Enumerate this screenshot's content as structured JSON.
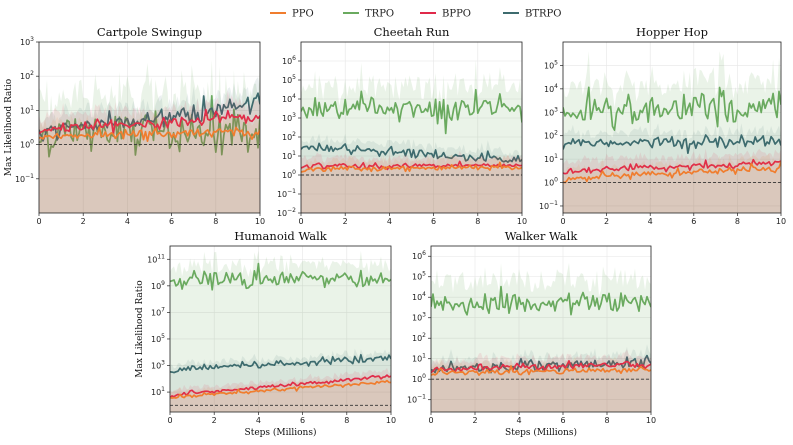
{
  "legend": [
    {
      "name": "PPO",
      "color": "#f07d2e"
    },
    {
      "name": "TRPO",
      "color": "#6aaa5f"
    },
    {
      "name": "BPPO",
      "color": "#e0294a"
    },
    {
      "name": "BTRPO",
      "color": "#3d6b6e"
    }
  ],
  "chart_data": [
    {
      "type": "line",
      "title": "Cartpole Swingup",
      "xlabel": "",
      "ylabel": "Max Likelihood Ratio",
      "xlim": [
        0,
        10
      ],
      "ylim_log10": [
        -2,
        3
      ],
      "yscale": "log",
      "xticks": [
        "0",
        "2",
        "4",
        "6",
        "8",
        "10"
      ],
      "yticks_exp": [
        "-1",
        "0",
        "1",
        "2",
        "3"
      ],
      "reference_line": 1,
      "series": [
        {
          "name": "PPO",
          "level": 1.8,
          "end": 2.2
        },
        {
          "name": "TRPO",
          "level": 2.0,
          "end": 2.5
        },
        {
          "name": "BPPO",
          "level": 2.8,
          "end": 6.0
        },
        {
          "name": "BTRPO",
          "level": 2.2,
          "end": 15.0
        }
      ]
    },
    {
      "type": "line",
      "title": "Cheetah Run",
      "xlabel": "",
      "ylabel": "",
      "xlim": [
        0,
        10
      ],
      "ylim_log10": [
        -2,
        7
      ],
      "yscale": "log",
      "xticks": [
        "0",
        "2",
        "4",
        "6",
        "8",
        "10"
      ],
      "yticks_exp": [
        "-2",
        "-1",
        "0",
        "1",
        "2",
        "3",
        "4",
        "5",
        "6"
      ],
      "reference_line": 1,
      "series": [
        {
          "name": "PPO",
          "level": 2.0,
          "end": 2.5
        },
        {
          "name": "TRPO",
          "level": 3000,
          "end": 3000
        },
        {
          "name": "BPPO",
          "level": 3.0,
          "end": 3.0
        },
        {
          "name": "BTRPO",
          "level": 30,
          "end": 6
        }
      ]
    },
    {
      "type": "line",
      "title": "Hopper Hop",
      "xlabel": "",
      "ylabel": "",
      "xlim": [
        0,
        10
      ],
      "ylim_log10": [
        -1.3,
        6
      ],
      "yscale": "log",
      "xticks": [
        "0",
        "2",
        "4",
        "6",
        "8",
        "10"
      ],
      "yticks_exp": [
        "-1",
        "0",
        "1",
        "2",
        "3",
        "4",
        "5"
      ],
      "reference_line": 1,
      "series": [
        {
          "name": "PPO",
          "level": 1.5,
          "end": 4.0
        },
        {
          "name": "TRPO",
          "level": 1000,
          "end": 1500
        },
        {
          "name": "BPPO",
          "level": 3.0,
          "end": 7.0
        },
        {
          "name": "BTRPO",
          "level": 40,
          "end": 60
        }
      ]
    },
    {
      "type": "line",
      "title": "Humanoid Walk",
      "xlabel": "Steps (Millions)",
      "ylabel": "Max Likelihood Ratio",
      "xlim": [
        0,
        10
      ],
      "ylim_log10": [
        -0.5,
        12
      ],
      "yscale": "log",
      "xticks": [
        "0",
        "2",
        "4",
        "6",
        "8",
        "10"
      ],
      "yticks_exp": [
        "1",
        "3",
        "5",
        "7",
        "9",
        "11"
      ],
      "reference_line": 1,
      "series": [
        {
          "name": "PPO",
          "level": 4,
          "end": 60
        },
        {
          "name": "TRPO",
          "level": 3000000000,
          "end": 3000000000
        },
        {
          "name": "BPPO",
          "level": 6,
          "end": 150
        },
        {
          "name": "BTRPO",
          "level": 400,
          "end": 4000
        }
      ]
    },
    {
      "type": "line",
      "title": "Walker Walk",
      "xlabel": "Steps (Millions)",
      "ylabel": "",
      "xlim": [
        0,
        10
      ],
      "ylim_log10": [
        -1.6,
        6.5
      ],
      "yscale": "log",
      "xticks": [
        "0",
        "2",
        "4",
        "6",
        "8",
        "10"
      ],
      "yticks_exp": [
        "-1",
        "0",
        "1",
        "2",
        "3",
        "4",
        "5",
        "6"
      ],
      "reference_line": 1,
      "series": [
        {
          "name": "PPO",
          "level": 2.0,
          "end": 3.0
        },
        {
          "name": "TRPO",
          "level": 5000,
          "end": 5000
        },
        {
          "name": "BPPO",
          "level": 3.0,
          "end": 5.0
        },
        {
          "name": "BTRPO",
          "level": 3.5,
          "end": 6.0
        }
      ]
    }
  ]
}
